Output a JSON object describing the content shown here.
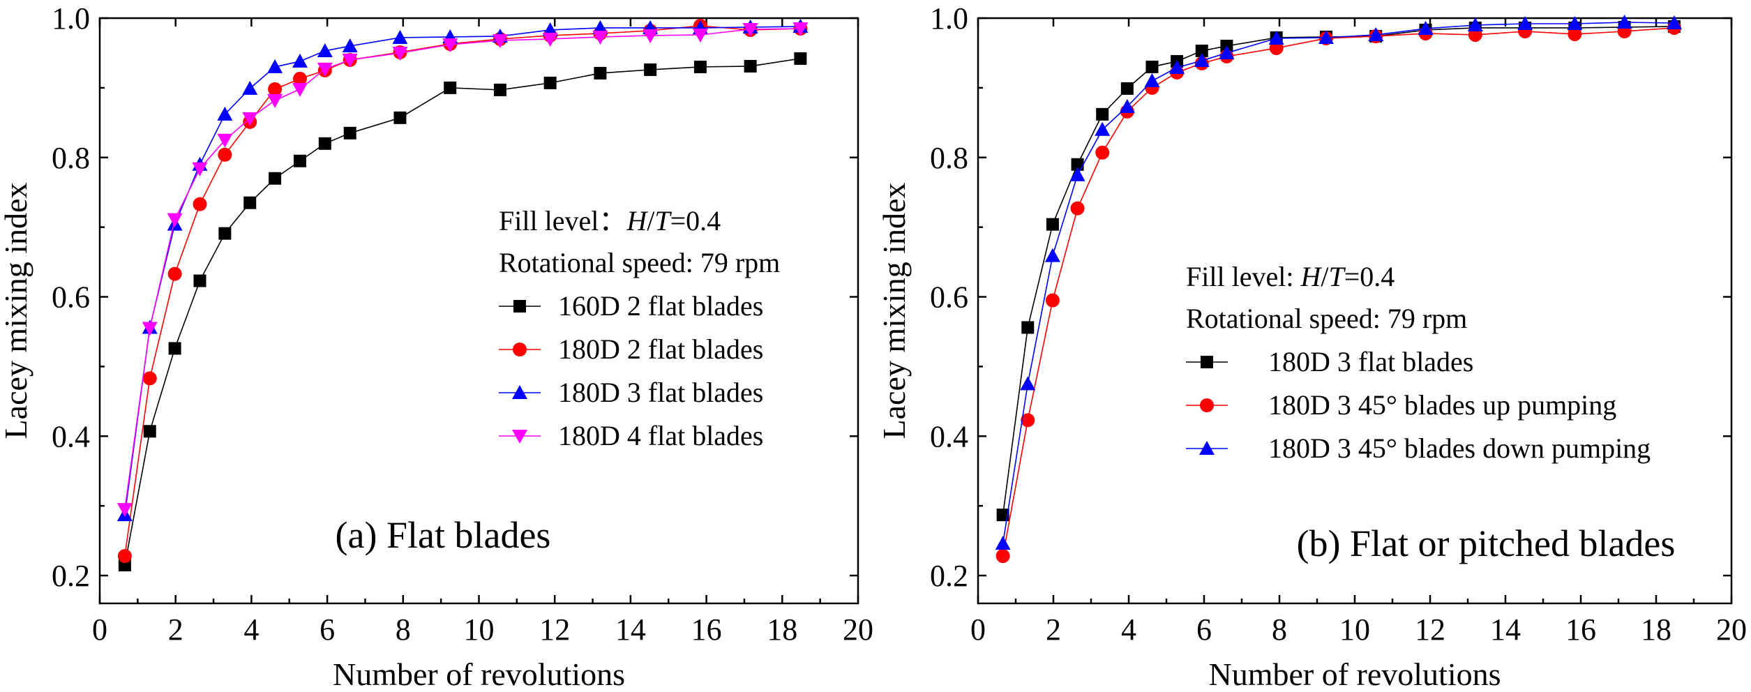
{
  "chart_data": [
    {
      "type": "line",
      "panel_label": "(a) Flat blades",
      "xlabel": "Number of revolutions",
      "ylabel": "Lacey mixing index",
      "xlim": [
        0,
        20
      ],
      "ylim": [
        0.16,
        1.0
      ],
      "x_ticks": [
        0,
        2,
        4,
        6,
        8,
        10,
        12,
        14,
        16,
        18,
        20
      ],
      "x_tick_labels": [
        "0",
        "2",
        "4",
        "6",
        "8",
        "10",
        "12",
        "14",
        "16",
        "18",
        "20"
      ],
      "y_ticks": [
        0.2,
        0.4,
        0.6,
        0.8,
        1.0
      ],
      "y_tick_labels": [
        "0.2",
        "0.4",
        "0.6",
        "0.8",
        "1.0"
      ],
      "grid": false,
      "legend_position": "right-center",
      "legend_header": [
        "Fill level：",
        "H",
        "/",
        "T",
        "=0.4"
      ],
      "legend_header_line2": "Rotational speed: 79 rpm",
      "series": [
        {
          "name": "160D 2 flat blades",
          "color": "#000000",
          "marker": "square",
          "x": [
            0.66,
            1.32,
            1.98,
            2.64,
            3.3,
            3.96,
            4.62,
            5.28,
            5.94,
            6.6,
            7.92,
            9.24,
            10.56,
            11.88,
            13.2,
            14.52,
            15.84,
            17.16,
            18.48
          ],
          "y": [
            0.215,
            0.407,
            0.526,
            0.623,
            0.691,
            0.735,
            0.77,
            0.795,
            0.82,
            0.835,
            0.857,
            0.9,
            0.897,
            0.907,
            0.921,
            0.926,
            0.93,
            0.931,
            0.942
          ]
        },
        {
          "name": "180D 2 flat blades",
          "color": "#ff0000",
          "marker": "circle",
          "x": [
            0.66,
            1.32,
            1.98,
            2.64,
            3.3,
            3.96,
            4.62,
            5.28,
            5.94,
            6.6,
            7.92,
            9.24,
            10.56,
            11.88,
            13.2,
            14.52,
            15.84,
            17.16,
            18.48
          ],
          "y": [
            0.228,
            0.483,
            0.633,
            0.733,
            0.804,
            0.851,
            0.898,
            0.913,
            0.925,
            0.94,
            0.951,
            0.963,
            0.97,
            0.975,
            0.978,
            0.982,
            0.989,
            0.983,
            0.985
          ]
        },
        {
          "name": "180D 3 flat blades",
          "color": "#0000ff",
          "marker": "triangle-up",
          "x": [
            0.66,
            1.32,
            1.98,
            2.64,
            3.3,
            3.96,
            4.62,
            5.28,
            5.94,
            6.6,
            7.92,
            9.24,
            10.56,
            11.88,
            13.2,
            14.52,
            15.84,
            17.16,
            18.48
          ],
          "y": [
            0.287,
            0.556,
            0.704,
            0.79,
            0.862,
            0.899,
            0.93,
            0.938,
            0.953,
            0.96,
            0.972,
            0.973,
            0.974,
            0.983,
            0.986,
            0.986,
            0.986,
            0.987,
            0.988
          ]
        },
        {
          "name": "180D 4 flat blades",
          "color": "#ff00ff",
          "marker": "triangle-down",
          "x": [
            0.66,
            1.32,
            1.98,
            2.64,
            3.3,
            3.96,
            4.62,
            5.28,
            5.94,
            6.6,
            7.92,
            9.24,
            10.56,
            11.88,
            13.2,
            14.52,
            15.84,
            17.16,
            18.48
          ],
          "y": [
            0.295,
            0.555,
            0.711,
            0.784,
            0.825,
            0.856,
            0.882,
            0.898,
            0.927,
            0.94,
            0.95,
            0.962,
            0.968,
            0.97,
            0.973,
            0.975,
            0.976,
            0.984,
            0.985
          ]
        }
      ]
    },
    {
      "type": "line",
      "panel_label": "(b) Flat or pitched blades",
      "xlabel": "Number of revolutions",
      "ylabel": "Lacey mixing index",
      "xlim": [
        0,
        20
      ],
      "ylim": [
        0.16,
        1.0
      ],
      "x_ticks": [
        0,
        2,
        4,
        6,
        8,
        10,
        12,
        14,
        16,
        18,
        20
      ],
      "x_tick_labels": [
        "0",
        "2",
        "4",
        "6",
        "8",
        "10",
        "12",
        "14",
        "16",
        "18",
        "20"
      ],
      "y_ticks": [
        0.2,
        0.4,
        0.6,
        0.8,
        1.0
      ],
      "y_tick_labels": [
        "0.2",
        "0.4",
        "0.6",
        "0.8",
        "1.0"
      ],
      "grid": false,
      "legend_position": "left-center",
      "legend_header": [
        "Fill level: ",
        "H",
        "/",
        "T",
        "=0.4"
      ],
      "legend_header_line2": "Rotational speed: 79 rpm",
      "series": [
        {
          "name": "180D 3 flat blades",
          "color": "#000000",
          "marker": "square",
          "x": [
            0.66,
            1.32,
            1.98,
            2.64,
            3.3,
            3.96,
            4.62,
            5.28,
            5.94,
            6.6,
            7.92,
            9.24,
            10.56,
            11.88,
            13.2,
            14.52,
            15.84,
            17.16,
            18.48
          ],
          "y": [
            0.287,
            0.556,
            0.704,
            0.79,
            0.862,
            0.899,
            0.93,
            0.938,
            0.953,
            0.96,
            0.972,
            0.973,
            0.974,
            0.983,
            0.986,
            0.986,
            0.986,
            0.987,
            0.988
          ]
        },
        {
          "name": "180D 3 45° blades up pumping",
          "color": "#ff0000",
          "marker": "circle",
          "x": [
            0.66,
            1.32,
            1.98,
            2.64,
            3.3,
            3.96,
            4.62,
            5.28,
            5.94,
            6.6,
            7.92,
            9.24,
            10.56,
            11.88,
            13.2,
            14.52,
            15.84,
            17.16,
            18.48
          ],
          "y": [
            0.228,
            0.423,
            0.595,
            0.727,
            0.807,
            0.866,
            0.9,
            0.922,
            0.935,
            0.945,
            0.957,
            0.971,
            0.974,
            0.978,
            0.976,
            0.981,
            0.977,
            0.981,
            0.986
          ]
        },
        {
          "name": "180D 3 45° blades down pumping",
          "color": "#0000ff",
          "marker": "triangle-up",
          "x": [
            0.66,
            1.32,
            1.98,
            2.64,
            3.3,
            3.96,
            4.62,
            5.28,
            5.94,
            6.6,
            7.92,
            9.24,
            10.56,
            11.88,
            13.2,
            14.52,
            15.84,
            17.16,
            18.48
          ],
          "y": [
            0.246,
            0.475,
            0.659,
            0.775,
            0.84,
            0.873,
            0.91,
            0.929,
            0.939,
            0.95,
            0.971,
            0.972,
            0.976,
            0.985,
            0.99,
            0.992,
            0.992,
            0.994,
            0.993
          ]
        }
      ]
    }
  ]
}
